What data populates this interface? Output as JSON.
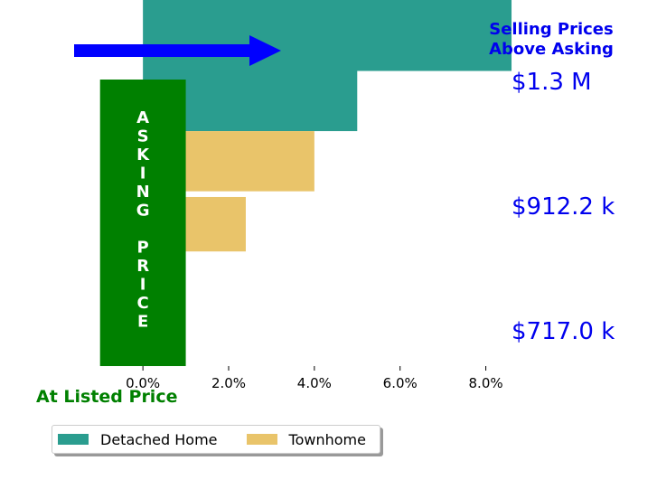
{
  "chart_data": {
    "type": "bar",
    "orientation": "horizontal",
    "title": "Selling Prices Above Asking",
    "title_lines": [
      "Selling Prices",
      "Above Asking"
    ],
    "xlabel": "At Listed Price",
    "ylabel": "ASKING PRICE",
    "ylabel_letters": [
      "A",
      "S",
      "K",
      "I",
      "N",
      "G",
      "",
      "P",
      "R",
      "I",
      "C",
      "E"
    ],
    "xlim": [
      -1.5,
      9.0
    ],
    "xticks": [
      0,
      2,
      4,
      6,
      8
    ],
    "xtick_labels": [
      "0.0%",
      "2.0%",
      "4.0%",
      "6.0%",
      "8.0%"
    ],
    "price_labels": [
      "$1.3 M",
      "$912.2 k",
      "$717.0 k"
    ],
    "series": [
      {
        "name": "Detached Home",
        "color": "#2a9d8f",
        "bars": [
          {
            "value": 8.6,
            "y_top": 1.28,
            "y_bottom": 1.03
          },
          {
            "value": 5.0,
            "y_top": 1.03,
            "y_bottom": 0.82
          }
        ]
      },
      {
        "name": "Townhome",
        "color": "#e9c46a",
        "bars": [
          {
            "value": 4.0,
            "y_top": 0.82,
            "y_bottom": 0.61
          },
          {
            "value": 2.4,
            "y_top": 0.59,
            "y_bottom": 0.4
          }
        ]
      }
    ],
    "asking_band": {
      "x_from": -1.0,
      "x_to": 1.0,
      "color": "#008000"
    },
    "arrow_color": "#0000ff",
    "price_color": "#0000ee",
    "listed_color": "#008000",
    "grid": false,
    "legend_position": "bottom-left"
  }
}
